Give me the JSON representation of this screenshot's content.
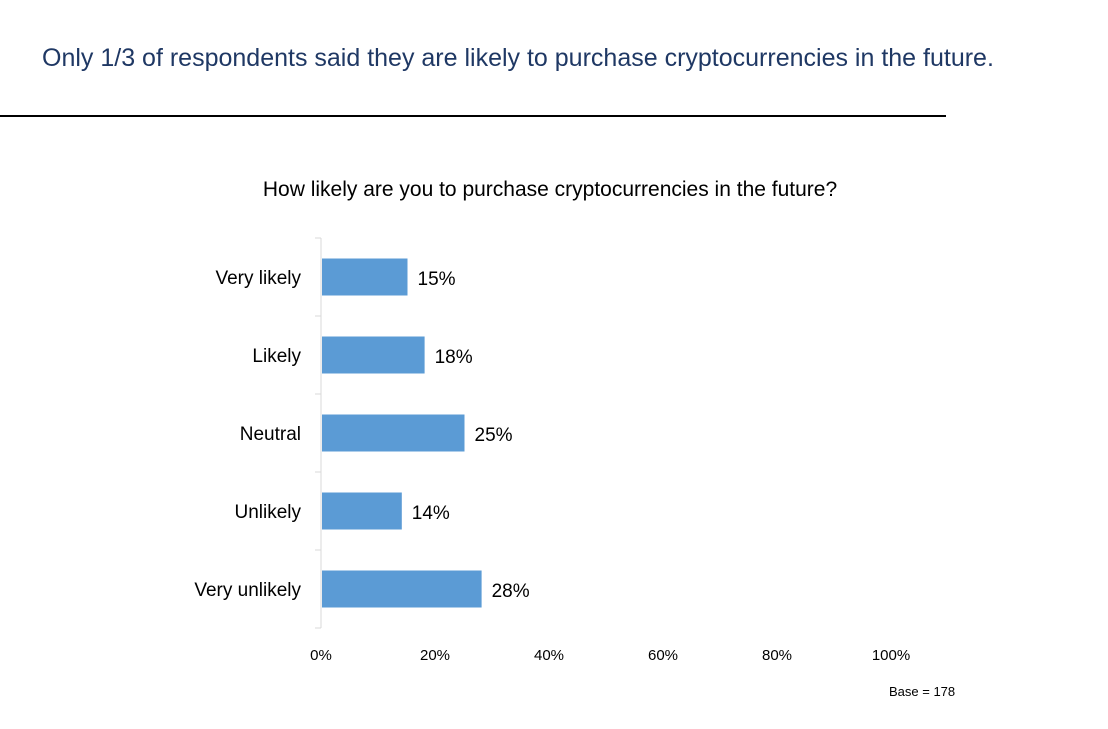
{
  "slide": {
    "title": "Only 1/3 of respondents said they are likely to purchase cryptocurrencies in the future.",
    "footnote": "Base = 178"
  },
  "colors": {
    "bar": "#5b9bd5",
    "title": "#1f3864",
    "axis": "#d9d9d9"
  },
  "chart_data": {
    "type": "bar",
    "orientation": "horizontal",
    "title": "How likely are you to purchase cryptocurrencies in the future?",
    "categories": [
      "Very likely",
      "Likely",
      "Neutral",
      "Unlikely",
      "Very unlikely"
    ],
    "values": [
      15,
      18,
      25,
      14,
      28
    ],
    "data_labels": [
      "15%",
      "18%",
      "25%",
      "14%",
      "28%"
    ],
    "xlim": [
      0,
      100
    ],
    "x_ticks": [
      0,
      20,
      40,
      60,
      80,
      100
    ],
    "x_tick_labels": [
      "0%",
      "20%",
      "40%",
      "60%",
      "80%",
      "100%"
    ],
    "grid": false,
    "legend": "none"
  }
}
